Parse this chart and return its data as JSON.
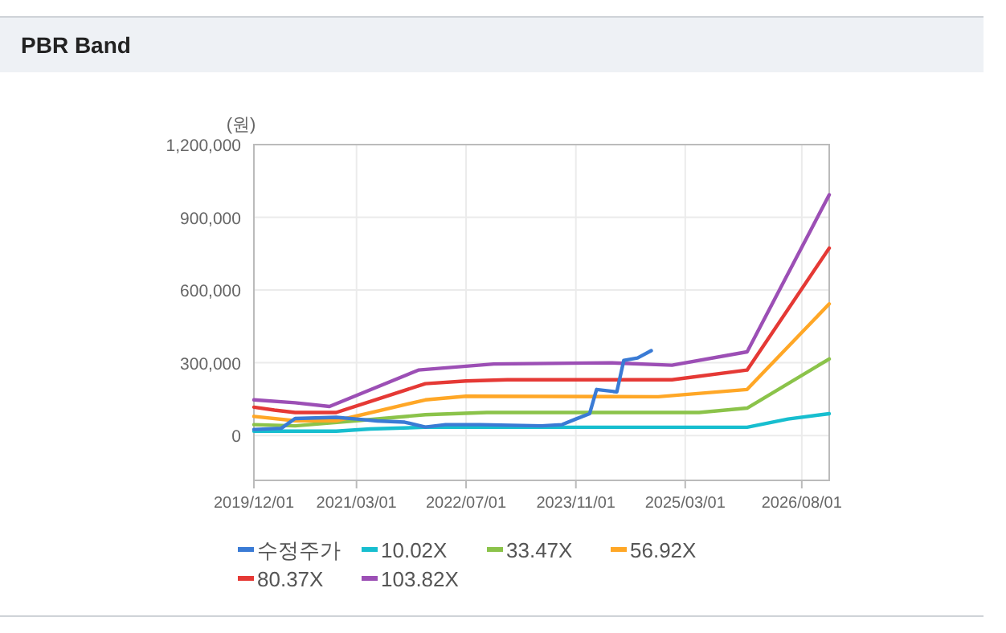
{
  "chart_data": {
    "type": "line",
    "title": "PBR Band",
    "ylabel": "(원)",
    "xlim": [
      "2019-12-01",
      "2026-12-01"
    ],
    "xticks": [
      {
        "value": "2019-12-01",
        "label": "2019/12/01"
      },
      {
        "value": "2021-03-01",
        "label": "2021/03/01"
      },
      {
        "value": "2022-07-01",
        "label": "2022/07/01"
      },
      {
        "value": "2023-11-01",
        "label": "2023/11/01"
      },
      {
        "value": "2025-03-01",
        "label": "2025/03/01"
      },
      {
        "value": "2026-08-01",
        "label": "2026/08/01"
      }
    ],
    "ylim": [
      -185000,
      1200000
    ],
    "yticks": [
      {
        "value": 0,
        "label": "0"
      },
      {
        "value": 300000,
        "label": "300,000"
      },
      {
        "value": 600000,
        "label": "600,000"
      },
      {
        "value": 900000,
        "label": "900,000"
      },
      {
        "value": 1200000,
        "label": "1,200,000"
      }
    ],
    "grid": true,
    "legend": "bottom",
    "series": [
      {
        "name": "수정주가",
        "color": "#3a7bd5",
        "x": [
          "2019-12",
          "2020-04",
          "2020-06",
          "2020-12",
          "2021-03",
          "2021-06",
          "2021-10",
          "2022-01",
          "2022-04",
          "2022-09",
          "2023-06",
          "2023-09",
          "2023-11",
          "2024-01",
          "2024-02",
          "2024-05",
          "2024-06",
          "2024-08",
          "2024-10"
        ],
        "values": [
          25000,
          30000,
          70000,
          75000,
          68000,
          60000,
          55000,
          35000,
          45000,
          45000,
          40000,
          45000,
          68000,
          90000,
          190000,
          180000,
          310000,
          320000,
          350000
        ]
      },
      {
        "name": "10.02X",
        "color": "#17becf",
        "x": [
          "2019-12",
          "2020-12",
          "2021-05",
          "2022-01",
          "2025-12",
          "2026-06",
          "2026-12"
        ],
        "values": [
          18000,
          18000,
          27000,
          34000,
          34000,
          68000,
          90000
        ]
      },
      {
        "name": "33.47X",
        "color": "#8bc34a",
        "x": [
          "2019-12",
          "2020-06",
          "2021-03",
          "2022-01",
          "2022-10",
          "2025-05",
          "2025-12",
          "2026-12"
        ],
        "values": [
          45000,
          40000,
          61000,
          86000,
          95000,
          95000,
          113000,
          316000
        ]
      },
      {
        "name": "56.92X",
        "color": "#ffa726",
        "x": [
          "2019-12",
          "2020-06",
          "2020-12",
          "2022-01",
          "2022-07",
          "2024-11",
          "2025-12",
          "2026-12"
        ],
        "values": [
          79000,
          61000,
          61000,
          147000,
          162000,
          160000,
          190000,
          543000
        ]
      },
      {
        "name": "80.37X",
        "color": "#e53935",
        "x": [
          "2019-12",
          "2020-03",
          "2020-06",
          "2020-12",
          "2022-01",
          "2022-07",
          "2023-01",
          "2025-01",
          "2025-12",
          "2026-12"
        ],
        "values": [
          117000,
          105000,
          95000,
          95000,
          214000,
          225000,
          230000,
          230000,
          270000,
          773000
        ]
      },
      {
        "name": "103.82X",
        "color": "#9c4fb5",
        "x": [
          "2019-12",
          "2020-06",
          "2020-11",
          "2021-12",
          "2022-11",
          "2024-04",
          "2025-01",
          "2025-12",
          "2026-12"
        ],
        "values": [
          147000,
          135000,
          120000,
          270000,
          295000,
          300000,
          290000,
          345000,
          993000
        ]
      }
    ]
  }
}
